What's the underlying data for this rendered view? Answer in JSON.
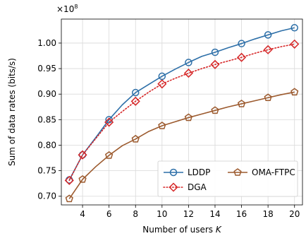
{
  "chart_data": {
    "type": "line",
    "xlabel": "Number of users",
    "xlabel_var": "K",
    "ylabel": "Sum of data rates (bits/s)",
    "y_multiplier": "×10",
    "y_exponent": "8",
    "xlim": [
      2.4,
      20.6
    ],
    "ylim": [
      0.683,
      1.047
    ],
    "xticks": [
      4,
      6,
      8,
      10,
      12,
      14,
      16,
      18,
      20
    ],
    "xtick_labels": [
      "4",
      "6",
      "8",
      "10",
      "12",
      "14",
      "16",
      "18",
      "20"
    ],
    "yticks": [
      0.7,
      0.75,
      0.8,
      0.85,
      0.9,
      0.95,
      1.0
    ],
    "ytick_labels": [
      "0.70",
      "0.75",
      "0.80",
      "0.85",
      "0.90",
      "0.95",
      "1.00"
    ],
    "grid": true,
    "legend_placement": "lower-right",
    "series": [
      {
        "name": "LDDP",
        "color": "#2d6fa8",
        "style": "solid",
        "marker": "circle",
        "x": [
          3,
          4,
          5,
          6,
          7,
          8,
          9,
          10,
          11,
          12,
          13,
          14,
          15,
          16,
          17,
          18,
          19,
          20
        ],
        "y": [
          0.732,
          0.781,
          0.815,
          0.85,
          0.879,
          0.903,
          0.919,
          0.935,
          0.949,
          0.962,
          0.974,
          0.982,
          0.991,
          0.999,
          1.008,
          1.016,
          1.024,
          1.03
        ],
        "marker_x": [
          3,
          4,
          6,
          8,
          10,
          12,
          14,
          16,
          18,
          20
        ],
        "marker_y": [
          0.732,
          0.781,
          0.85,
          0.903,
          0.935,
          0.962,
          0.982,
          0.999,
          1.016,
          1.03
        ]
      },
      {
        "name": "DGA",
        "color": "#d62728",
        "style": "dotted",
        "marker": "diamond",
        "x": [
          3,
          4,
          5,
          6,
          7,
          8,
          9,
          10,
          11,
          12,
          13,
          14,
          15,
          16,
          17,
          18,
          19,
          20
        ],
        "y": [
          0.731,
          0.781,
          0.813,
          0.845,
          0.866,
          0.886,
          0.904,
          0.92,
          0.931,
          0.941,
          0.95,
          0.958,
          0.965,
          0.972,
          0.98,
          0.987,
          0.993,
          0.998
        ],
        "marker_x": [
          3,
          4,
          6,
          8,
          10,
          12,
          14,
          16,
          18,
          20
        ],
        "marker_y": [
          0.731,
          0.781,
          0.845,
          0.886,
          0.92,
          0.941,
          0.958,
          0.972,
          0.987,
          0.998
        ]
      },
      {
        "name": "OMA-FTPC",
        "color": "#9c5a2e",
        "style": "solid",
        "marker": "pentagon",
        "x": [
          3,
          4,
          5,
          6,
          7,
          8,
          9,
          10,
          11,
          12,
          13,
          14,
          15,
          16,
          17,
          18,
          19,
          20
        ],
        "y": [
          0.695,
          0.733,
          0.758,
          0.78,
          0.799,
          0.812,
          0.827,
          0.838,
          0.846,
          0.854,
          0.861,
          0.868,
          0.875,
          0.881,
          0.887,
          0.893,
          0.899,
          0.904
        ],
        "marker_x": [
          3,
          4,
          6,
          8,
          10,
          12,
          14,
          16,
          18,
          20
        ],
        "marker_y": [
          0.695,
          0.733,
          0.78,
          0.812,
          0.838,
          0.854,
          0.868,
          0.881,
          0.893,
          0.904
        ]
      }
    ]
  }
}
